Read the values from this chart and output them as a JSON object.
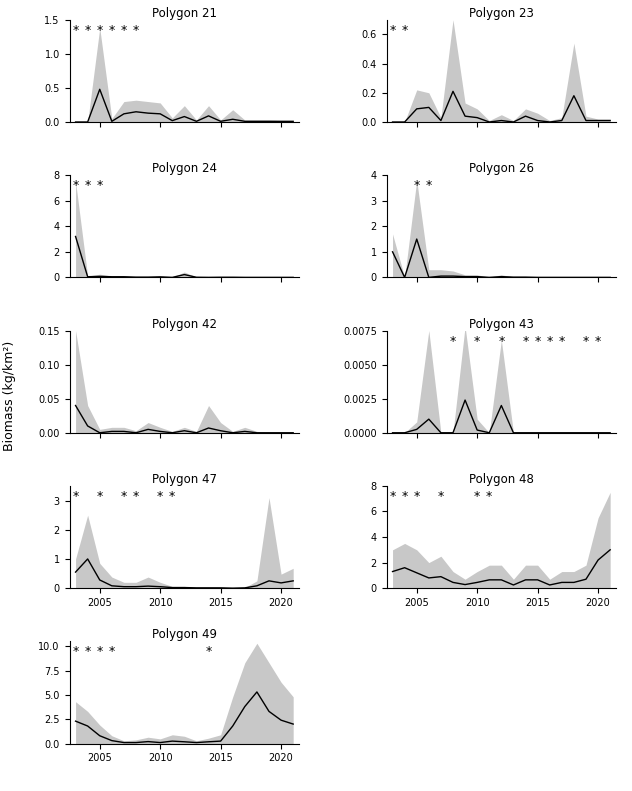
{
  "ylabel": "Biomass (kg/km²)",
  "polygons": [
    {
      "name": "Polygon 21",
      "years": [
        2003,
        2004,
        2005,
        2006,
        2007,
        2008,
        2009,
        2010,
        2011,
        2012,
        2013,
        2014,
        2015,
        2016,
        2017,
        2018,
        2019,
        2020,
        2021
      ],
      "mean": [
        0.0,
        0.0,
        0.48,
        0.01,
        0.12,
        0.15,
        0.13,
        0.12,
        0.02,
        0.08,
        0.01,
        0.09,
        0.01,
        0.04,
        0.01,
        0.01,
        0.01,
        0.01,
        0.01
      ],
      "sd_upper": [
        0.0,
        0.0,
        1.38,
        0.05,
        0.3,
        0.32,
        0.3,
        0.28,
        0.06,
        0.24,
        0.03,
        0.24,
        0.03,
        0.18,
        0.03,
        0.03,
        0.03,
        0.02,
        0.02
      ],
      "sd_lower": [
        0.0,
        0.0,
        0.0,
        0.0,
        0.0,
        0.0,
        0.0,
        0.0,
        0.0,
        0.0,
        0.0,
        0.0,
        0.0,
        0.0,
        0.0,
        0.0,
        0.0,
        0.0,
        0.0
      ],
      "low_n_years": [
        2003,
        2004,
        2005,
        2006,
        2007,
        2008
      ],
      "ylim": [
        0,
        1.5
      ],
      "yticks": [
        0.0,
        0.5,
        1.0,
        1.5
      ]
    },
    {
      "name": "Polygon 23",
      "years": [
        2003,
        2004,
        2005,
        2006,
        2007,
        2008,
        2009,
        2010,
        2011,
        2012,
        2013,
        2014,
        2015,
        2016,
        2017,
        2018,
        2019,
        2020,
        2021
      ],
      "mean": [
        0.0,
        0.0,
        0.09,
        0.1,
        0.01,
        0.21,
        0.04,
        0.03,
        0.0,
        0.01,
        0.0,
        0.04,
        0.01,
        0.0,
        0.01,
        0.18,
        0.01,
        0.01,
        0.01
      ],
      "sd_upper": [
        0.0,
        0.0,
        0.22,
        0.2,
        0.03,
        0.7,
        0.13,
        0.09,
        0.01,
        0.05,
        0.01,
        0.09,
        0.06,
        0.01,
        0.03,
        0.54,
        0.04,
        0.02,
        0.02
      ],
      "sd_lower": [
        0.0,
        0.0,
        0.0,
        0.0,
        0.0,
        0.0,
        0.0,
        0.0,
        0.0,
        0.0,
        0.0,
        0.0,
        0.0,
        0.0,
        0.0,
        0.0,
        0.0,
        0.0,
        0.0
      ],
      "low_n_years": [
        2003,
        2004
      ],
      "ylim": [
        0,
        0.7
      ],
      "yticks": [
        0.0,
        0.2,
        0.4,
        0.6
      ]
    },
    {
      "name": "Polygon 24",
      "years": [
        2003,
        2004,
        2005,
        2006,
        2007,
        2008,
        2009,
        2010,
        2011,
        2012,
        2013,
        2014,
        2015,
        2016,
        2017,
        2018,
        2019,
        2020,
        2021
      ],
      "mean": [
        3.2,
        0.05,
        0.08,
        0.05,
        0.05,
        0.02,
        0.02,
        0.04,
        0.0,
        0.22,
        0.01,
        0.0,
        0.01,
        0.01,
        0.0,
        0.0,
        0.0,
        0.0,
        0.0
      ],
      "sd_upper": [
        7.5,
        0.1,
        0.25,
        0.1,
        0.1,
        0.05,
        0.06,
        0.12,
        0.01,
        0.42,
        0.02,
        0.01,
        0.03,
        0.02,
        0.01,
        0.01,
        0.01,
        0.0,
        0.0
      ],
      "sd_lower": [
        0.0,
        0.0,
        0.0,
        0.0,
        0.0,
        0.0,
        0.0,
        0.0,
        0.0,
        0.0,
        0.0,
        0.0,
        0.0,
        0.0,
        0.0,
        0.0,
        0.0,
        0.0,
        0.0
      ],
      "low_n_years": [
        2003,
        2004,
        2005
      ],
      "ylim": [
        0,
        8
      ],
      "yticks": [
        0,
        2,
        4,
        6,
        8
      ]
    },
    {
      "name": "Polygon 26",
      "years": [
        2003,
        2004,
        2005,
        2006,
        2007,
        2008,
        2009,
        2010,
        2011,
        2012,
        2013,
        2014,
        2015,
        2016,
        2017,
        2018,
        2019,
        2020,
        2021
      ],
      "mean": [
        1.0,
        0.0,
        1.5,
        0.0,
        0.05,
        0.05,
        0.03,
        0.03,
        0.0,
        0.03,
        0.01,
        0.01,
        0.0,
        0.0,
        0.0,
        0.0,
        0.0,
        0.0,
        0.0
      ],
      "sd_upper": [
        1.7,
        0.0,
        3.8,
        0.3,
        0.3,
        0.25,
        0.1,
        0.1,
        0.01,
        0.1,
        0.02,
        0.03,
        0.01,
        0.01,
        0.01,
        0.01,
        0.01,
        0.01,
        0.01
      ],
      "sd_lower": [
        0.0,
        0.0,
        0.0,
        0.0,
        0.0,
        0.0,
        0.0,
        0.0,
        0.0,
        0.0,
        0.0,
        0.0,
        0.0,
        0.0,
        0.0,
        0.0,
        0.0,
        0.0,
        0.0
      ],
      "low_n_years": [
        2005,
        2006
      ],
      "ylim": [
        0,
        4
      ],
      "yticks": [
        0,
        1,
        2,
        3,
        4
      ]
    },
    {
      "name": "Polygon 42",
      "years": [
        2003,
        2004,
        2005,
        2006,
        2007,
        2008,
        2009,
        2010,
        2011,
        2012,
        2013,
        2014,
        2015,
        2016,
        2017,
        2018,
        2019,
        2020,
        2021
      ],
      "mean": [
        0.04,
        0.01,
        0.0,
        0.002,
        0.002,
        0.0,
        0.005,
        0.002,
        0.0,
        0.003,
        0.0,
        0.007,
        0.003,
        0.0,
        0.002,
        0.0,
        0.0,
        0.0,
        0.0
      ],
      "sd_upper": [
        0.15,
        0.04,
        0.005,
        0.008,
        0.008,
        0.003,
        0.015,
        0.008,
        0.002,
        0.008,
        0.002,
        0.04,
        0.015,
        0.002,
        0.008,
        0.002,
        0.001,
        0.001,
        0.001
      ],
      "sd_lower": [
        0.0,
        0.0,
        0.0,
        0.0,
        0.0,
        0.0,
        0.0,
        0.0,
        0.0,
        0.0,
        0.0,
        0.0,
        0.0,
        0.0,
        0.0,
        0.0,
        0.0,
        0.0,
        0.0
      ],
      "low_n_years": [],
      "ylim": [
        0,
        0.15
      ],
      "yticks": [
        0.0,
        0.05,
        0.1,
        0.15
      ]
    },
    {
      "name": "Polygon 43",
      "years": [
        2003,
        2004,
        2005,
        2006,
        2007,
        2008,
        2009,
        2010,
        2011,
        2012,
        2013,
        2014,
        2015,
        2016,
        2017,
        2018,
        2019,
        2020,
        2021
      ],
      "mean": [
        0.0,
        0.0,
        0.00025,
        0.001,
        0.0,
        0.0,
        0.0024,
        0.0002,
        0.0,
        0.002,
        0.0,
        0.0,
        0.0,
        0.0,
        0.0,
        0.0,
        0.0,
        0.0,
        0.0
      ],
      "sd_upper": [
        0.0,
        0.0,
        0.0008,
        0.0075,
        0.0,
        0.0,
        0.0078,
        0.001,
        0.0,
        0.0068,
        0.0,
        0.0,
        0.0,
        0.0,
        0.0,
        0.0,
        0.0,
        0.0,
        0.0
      ],
      "sd_lower": [
        0.0,
        0.0,
        0.0,
        0.0,
        0.0,
        0.0,
        0.0,
        0.0,
        0.0,
        0.0,
        0.0,
        0.0,
        0.0,
        0.0,
        0.0,
        0.0,
        0.0,
        0.0,
        0.0
      ],
      "low_n_years": [
        2008,
        2010,
        2012,
        2014,
        2015,
        2016,
        2017,
        2019,
        2020
      ],
      "ylim": [
        0,
        0.0075
      ],
      "yticks": [
        0.0,
        0.0025,
        0.005,
        0.0075
      ]
    },
    {
      "name": "Polygon 47",
      "years": [
        2003,
        2004,
        2005,
        2006,
        2007,
        2008,
        2009,
        2010,
        2011,
        2012,
        2013,
        2014,
        2015,
        2016,
        2017,
        2018,
        2019,
        2020,
        2021
      ],
      "mean": [
        0.55,
        1.0,
        0.28,
        0.08,
        0.05,
        0.05,
        0.07,
        0.05,
        0.02,
        0.02,
        0.01,
        0.01,
        0.01,
        0.0,
        0.01,
        0.08,
        0.25,
        0.18,
        0.25
      ],
      "sd_upper": [
        1.0,
        2.5,
        0.85,
        0.38,
        0.2,
        0.2,
        0.38,
        0.2,
        0.06,
        0.06,
        0.04,
        0.04,
        0.03,
        0.01,
        0.02,
        0.25,
        3.1,
        0.48,
        0.68
      ],
      "sd_lower": [
        0.0,
        0.0,
        0.0,
        0.0,
        0.0,
        0.0,
        0.0,
        0.0,
        0.0,
        0.0,
        0.0,
        0.0,
        0.0,
        0.0,
        0.0,
        0.0,
        0.0,
        0.0,
        0.0
      ],
      "low_n_years": [
        2003,
        2005,
        2007,
        2008,
        2010,
        2011
      ],
      "ylim": [
        0,
        3.5
      ],
      "yticks": [
        0,
        1,
        2,
        3
      ]
    },
    {
      "name": "Polygon 48",
      "years": [
        2003,
        2004,
        2005,
        2006,
        2007,
        2008,
        2009,
        2010,
        2011,
        2012,
        2013,
        2014,
        2015,
        2016,
        2017,
        2018,
        2019,
        2020,
        2021
      ],
      "mean": [
        1.3,
        1.6,
        1.2,
        0.8,
        0.9,
        0.45,
        0.28,
        0.45,
        0.65,
        0.65,
        0.25,
        0.65,
        0.65,
        0.25,
        0.45,
        0.45,
        0.7,
        2.2,
        3.0
      ],
      "sd_upper": [
        3.0,
        3.5,
        3.0,
        2.0,
        2.5,
        1.3,
        0.7,
        1.3,
        1.8,
        1.8,
        0.7,
        1.8,
        1.8,
        0.7,
        1.3,
        1.3,
        1.8,
        5.5,
        7.5
      ],
      "sd_lower": [
        0.0,
        0.0,
        0.0,
        0.0,
        0.0,
        0.0,
        0.0,
        0.0,
        0.0,
        0.0,
        0.0,
        0.0,
        0.0,
        0.0,
        0.0,
        0.0,
        0.0,
        0.0,
        0.0
      ],
      "low_n_years": [
        2003,
        2004,
        2005,
        2007,
        2010,
        2011
      ],
      "ylim": [
        0,
        8
      ],
      "yticks": [
        0,
        2,
        4,
        6,
        8
      ]
    },
    {
      "name": "Polygon 49",
      "years": [
        2003,
        2004,
        2005,
        2006,
        2007,
        2008,
        2009,
        2010,
        2011,
        2012,
        2013,
        2014,
        2015,
        2016,
        2017,
        2018,
        2019,
        2020,
        2021
      ],
      "mean": [
        2.3,
        1.8,
        0.8,
        0.3,
        0.1,
        0.1,
        0.2,
        0.1,
        0.25,
        0.18,
        0.1,
        0.18,
        0.25,
        1.8,
        3.8,
        5.3,
        3.3,
        2.4,
        2.0
      ],
      "sd_upper": [
        4.3,
        3.3,
        1.9,
        0.8,
        0.28,
        0.38,
        0.65,
        0.48,
        0.9,
        0.75,
        0.28,
        0.55,
        0.9,
        4.8,
        8.3,
        10.3,
        8.3,
        6.3,
        4.8
      ],
      "sd_lower": [
        0.0,
        0.0,
        0.0,
        0.0,
        0.0,
        0.0,
        0.0,
        0.0,
        0.0,
        0.0,
        0.0,
        0.0,
        0.0,
        0.0,
        0.0,
        0.0,
        0.0,
        0.0,
        0.0
      ],
      "low_n_years": [
        2003,
        2004,
        2005,
        2006,
        2014
      ],
      "ylim": [
        0,
        10.5
      ],
      "yticks": [
        0.0,
        2.5,
        5.0,
        7.5,
        10.0
      ]
    }
  ],
  "fill_color": "#c8c8c8",
  "line_color": "#000000",
  "star_color": "#000000",
  "bg_color": "#ffffff",
  "xlim": [
    2002.5,
    2021.5
  ],
  "xticks": [
    2005,
    2010,
    2015,
    2020
  ]
}
